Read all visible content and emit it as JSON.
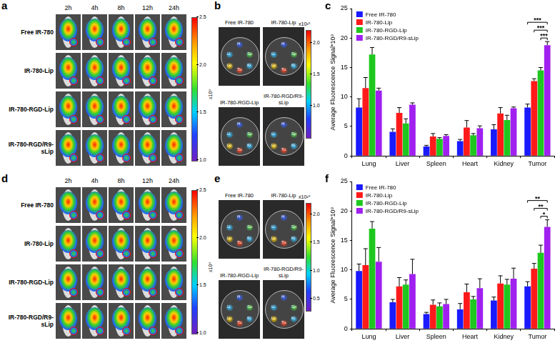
{
  "images": [
    {
      "panel_label": "a",
      "times": [
        "2h",
        "4h",
        "8h",
        "12h",
        "24h"
      ],
      "groups": [
        "Free IR-780",
        "IR-780-Lip",
        "IR-780-RGD-Lip",
        "IR-780-RGD/R9-sLip"
      ],
      "colorbar": {
        "range": [
          1,
          2.5
        ],
        "ticks": [
          {
            "value": 1,
            "label": "1.0"
          },
          1.5,
          {
            "value": 2,
            "label": "2.0"
          },
          2.5
        ],
        "exponent": "x10⁹"
      }
    },
    {
      "panel_label": "b",
      "groups": [
        "Free IR-780",
        "IR-780-Lip",
        "IR-780-RGD-Lip",
        "IR-780-RGD/R9-sLip"
      ],
      "organs": [
        "H",
        "Li",
        "Sp",
        "Lu",
        "Ki",
        "Tu"
      ],
      "colorbar": {
        "range": [
          0.5,
          2.2
        ],
        "ticks": [
          {
            "value": 1,
            "label": "1.0"
          },
          1.5,
          {
            "value": 2,
            "label": "2.0"
          }
        ],
        "exponent": "x10¹⁰"
      }
    },
    {
      "panel_label": "d",
      "times": [
        "2h",
        "4h",
        "8h",
        "12h",
        "24h"
      ],
      "groups": [
        "Free IR-780",
        "IR-780-Lip",
        "IR-780-RGD-Lip",
        "IR-780-RGD/R9-sLip"
      ],
      "colorbar": {
        "range": [
          1,
          2.5
        ],
        "ticks": [
          {
            "value": 1,
            "label": "1.0"
          },
          1.5,
          {
            "value": 2,
            "label": "2.0"
          },
          2.5
        ],
        "exponent": "x10⁹"
      }
    },
    {
      "panel_label": "e",
      "groups": [
        "Free IR-780",
        "IR-780-Lip",
        "IR-780-RGD-Lip",
        "IR-780-RGD/R9-sLip"
      ],
      "organs": [
        "H",
        "Li",
        "Sp",
        "Lu",
        "Ki",
        "Tu"
      ],
      "colorbar": {
        "range": [
          0.3,
          2.2
        ],
        "ticks": [
          0.5,
          {
            "value": 1,
            "label": "1.0"
          },
          1.5,
          {
            "value": 2,
            "label": "2.0"
          }
        ],
        "exponent": "x10¹⁰"
      }
    }
  ],
  "chart_data": [
    {
      "panel_label": "c",
      "type": "bar",
      "y_label": "Average Fluorescence Signal*10⁹",
      "categories": [
        "Lung",
        "Liver",
        "Spleen",
        "Heart",
        "Kidney",
        "Tumor"
      ],
      "series": [
        {
          "name": "Free IR-780",
          "color": "#1a1aff",
          "values": [
            8.2,
            4.1,
            1.6,
            2.5,
            4.5,
            8.2
          ],
          "errors": [
            1.5,
            0.5,
            0.2,
            0.3,
            0.8,
            0.6
          ]
        },
        {
          "name": "IR-780-Lip",
          "color": "#ff1a1a",
          "values": [
            11.5,
            7.3,
            3.3,
            4.8,
            7.2,
            12.7
          ],
          "errors": [
            1.8,
            0.9,
            0.5,
            1.2,
            1.0,
            0.4
          ]
        },
        {
          "name": "IR-780-RGD-Lip",
          "color": "#1ec81e",
          "values": [
            17.2,
            5.5,
            2.9,
            3.5,
            6.1,
            14.5
          ],
          "errors": [
            1.2,
            0.8,
            0.2,
            0.3,
            0.8,
            0.5
          ]
        },
        {
          "name": "IR-780-RGD/R9-sLip",
          "color": "#a020f0",
          "values": [
            11.1,
            8.7,
            3.4,
            4.7,
            8.1,
            18.8
          ],
          "errors": [
            0.4,
            0.3,
            0.2,
            0.4,
            0.2,
            0.6
          ]
        }
      ],
      "significance": [
        {
          "category": "Tumor",
          "from": "Free IR-780",
          "to": "IR-780-RGD/R9-sLip",
          "label": "***"
        },
        {
          "category": "Tumor",
          "from": "IR-780-Lip",
          "to": "IR-780-RGD/R9-sLip",
          "label": "***"
        },
        {
          "category": "Tumor",
          "from": "IR-780-RGD-Lip",
          "to": "IR-780-RGD/R9-sLip",
          "label": "***"
        }
      ],
      "ylim": [
        0,
        25
      ],
      "yticks": [
        0,
        5,
        10,
        15,
        20,
        25
      ],
      "grid": false,
      "legend": "upper left"
    },
    {
      "panel_label": "f",
      "type": "bar",
      "y_label": "Average Fluorescence Signal*10⁹",
      "categories": [
        "Lung",
        "Liver",
        "Spleen",
        "Heart",
        "Kidney",
        "Tumor"
      ],
      "series": [
        {
          "name": "Free IR-780",
          "color": "#1a1aff",
          "values": [
            9.8,
            4.5,
            2.5,
            3.3,
            4.8,
            7.2
          ],
          "errors": [
            1.2,
            0.5,
            0.3,
            1.0,
            0.6,
            0.8
          ]
        },
        {
          "name": "IR-780-Lip",
          "color": "#ff1a1a",
          "values": [
            10.8,
            7.2,
            4.1,
            6.2,
            7.7,
            10.2
          ],
          "errors": [
            2.8,
            1.5,
            0.8,
            1.4,
            1.3,
            0.9
          ]
        },
        {
          "name": "IR-780-RGD-Lip",
          "color": "#1ec81e",
          "values": [
            17.0,
            7.5,
            3.8,
            5.0,
            7.5,
            12.9
          ],
          "errors": [
            1.2,
            0.8,
            0.6,
            0.5,
            0.9,
            1.3
          ]
        },
        {
          "name": "IR-780-RGD/R9-sLip",
          "color": "#a020f0",
          "values": [
            11.4,
            9.3,
            4.2,
            6.9,
            8.5,
            17.3
          ],
          "errors": [
            2.4,
            2.5,
            0.8,
            1.6,
            1.8,
            1.2
          ]
        }
      ],
      "significance": [
        {
          "category": "Tumor",
          "from": "Free IR-780",
          "to": "IR-780-RGD/R9-sLip",
          "label": "**"
        },
        {
          "category": "Tumor",
          "from": "IR-780-Lip",
          "to": "IR-780-RGD/R9-sLip",
          "label": "**"
        },
        {
          "category": "Tumor",
          "from": "IR-780-RGD-Lip",
          "to": "IR-780-RGD/R9-sLip",
          "label": "*"
        }
      ],
      "ylim": [
        0,
        25
      ],
      "yticks": [
        0,
        5,
        10,
        15,
        20,
        25
      ],
      "grid": false,
      "legend": "upper left"
    }
  ]
}
